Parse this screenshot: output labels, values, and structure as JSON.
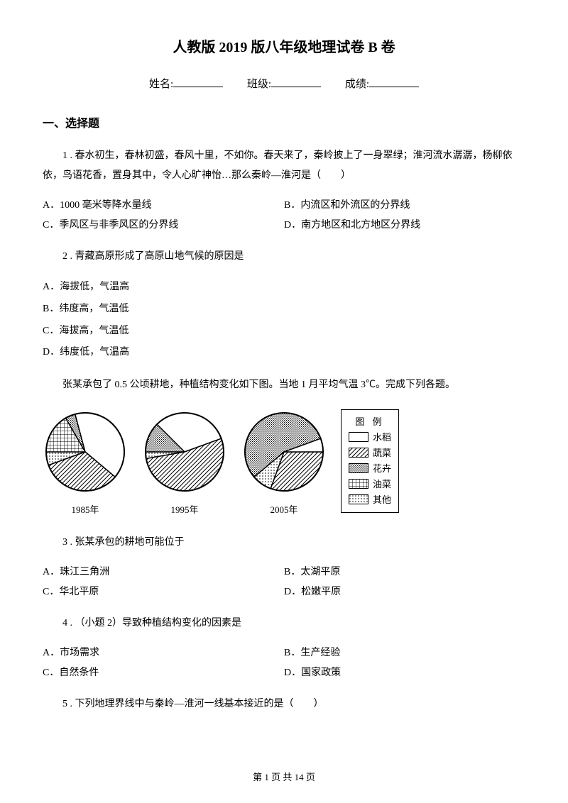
{
  "title": "人教版 2019 版八年级地理试卷 B 卷",
  "info": {
    "name_label": "姓名:",
    "class_label": "班级:",
    "score_label": "成绩:"
  },
  "section1": "一、选择题",
  "q1": {
    "text": "1 . 春水初生，春林初盛，春风十里，不如你。春天来了，秦岭披上了一身翠绿；淮河流水潺潺，杨柳依依，鸟语花香，置身其中，令人心旷神怡…那么秦岭—淮河是（　　）",
    "A": "A．1000 毫米等降水量线",
    "B": "B．内流区和外流区的分界线",
    "C": "C．季风区与非季风区的分界线",
    "D": "D．南方地区和北方地区分界线"
  },
  "q2": {
    "text": "2 . 青藏高原形成了高原山地气候的原因是",
    "A": "A．海拔低，气温高",
    "B": "B．纬度高，气温低",
    "C": "C．海拔高，气温低",
    "D": "D．纬度低，气温高"
  },
  "context": "张某承包了 0.5 公顷耕地，种植结构变化如下图。当地 1 月平均气温 3℃。完成下列各题。",
  "charts": {
    "type": "pie",
    "years": [
      "1985年",
      "1995年",
      "2005年"
    ],
    "legend_title": "图 例",
    "legend_items": [
      "水稻",
      "蔬菜",
      "花卉",
      "油菜",
      "其他"
    ],
    "patterns": {
      "水稻": "white",
      "蔬菜": "diag",
      "花卉": "dense",
      "油菜": "grid",
      "其他": "dots"
    },
    "pies": {
      "1985": [
        {
          "label": "其他",
          "start": -110,
          "end": -90,
          "pattern": "dots"
        },
        {
          "label": "油菜",
          "start": -90,
          "end": -30,
          "pattern": "grid"
        },
        {
          "label": "花卉",
          "start": -30,
          "end": -15,
          "pattern": "dense"
        },
        {
          "label": "水稻",
          "start": -15,
          "end": 130,
          "pattern": "white"
        },
        {
          "label": "蔬菜",
          "start": 130,
          "end": 250,
          "pattern": "diag"
        }
      ],
      "1995": [
        {
          "label": "其他",
          "start": -100,
          "end": -90,
          "pattern": "dots"
        },
        {
          "label": "花卉",
          "start": -90,
          "end": -45,
          "pattern": "dense"
        },
        {
          "label": "水稻",
          "start": -45,
          "end": 70,
          "pattern": "white"
        },
        {
          "label": "蔬菜",
          "start": 70,
          "end": 260,
          "pattern": "diag"
        }
      ],
      "2005": [
        {
          "label": "蔬菜",
          "start": 90,
          "end": 200,
          "pattern": "diag"
        },
        {
          "label": "其他",
          "start": 200,
          "end": 230,
          "pattern": "dots"
        },
        {
          "label": "花卉",
          "start": 230,
          "end": 430,
          "pattern": "dense"
        },
        {
          "label": "水稻",
          "start": 70,
          "end": 90,
          "pattern": "white"
        }
      ]
    },
    "radius": 55,
    "stroke": "#000000",
    "stroke_width": 1.5
  },
  "q3": {
    "text": "3 . 张某承包的耕地可能位于",
    "A": "A．珠江三角洲",
    "B": "B．太湖平原",
    "C": "C．华北平原",
    "D": "D．松嫩平原"
  },
  "q4": {
    "text": "4 . （小题 2）导致种植结构变化的因素是",
    "A": "A．市场需求",
    "B": "B．生产经验",
    "C": "C．自然条件",
    "D": "D．国家政策"
  },
  "q5": {
    "text": "5 . 下列地理界线中与秦岭—淮河一线基本接近的是（　　）"
  },
  "footer": "第 1 页 共 14 页"
}
